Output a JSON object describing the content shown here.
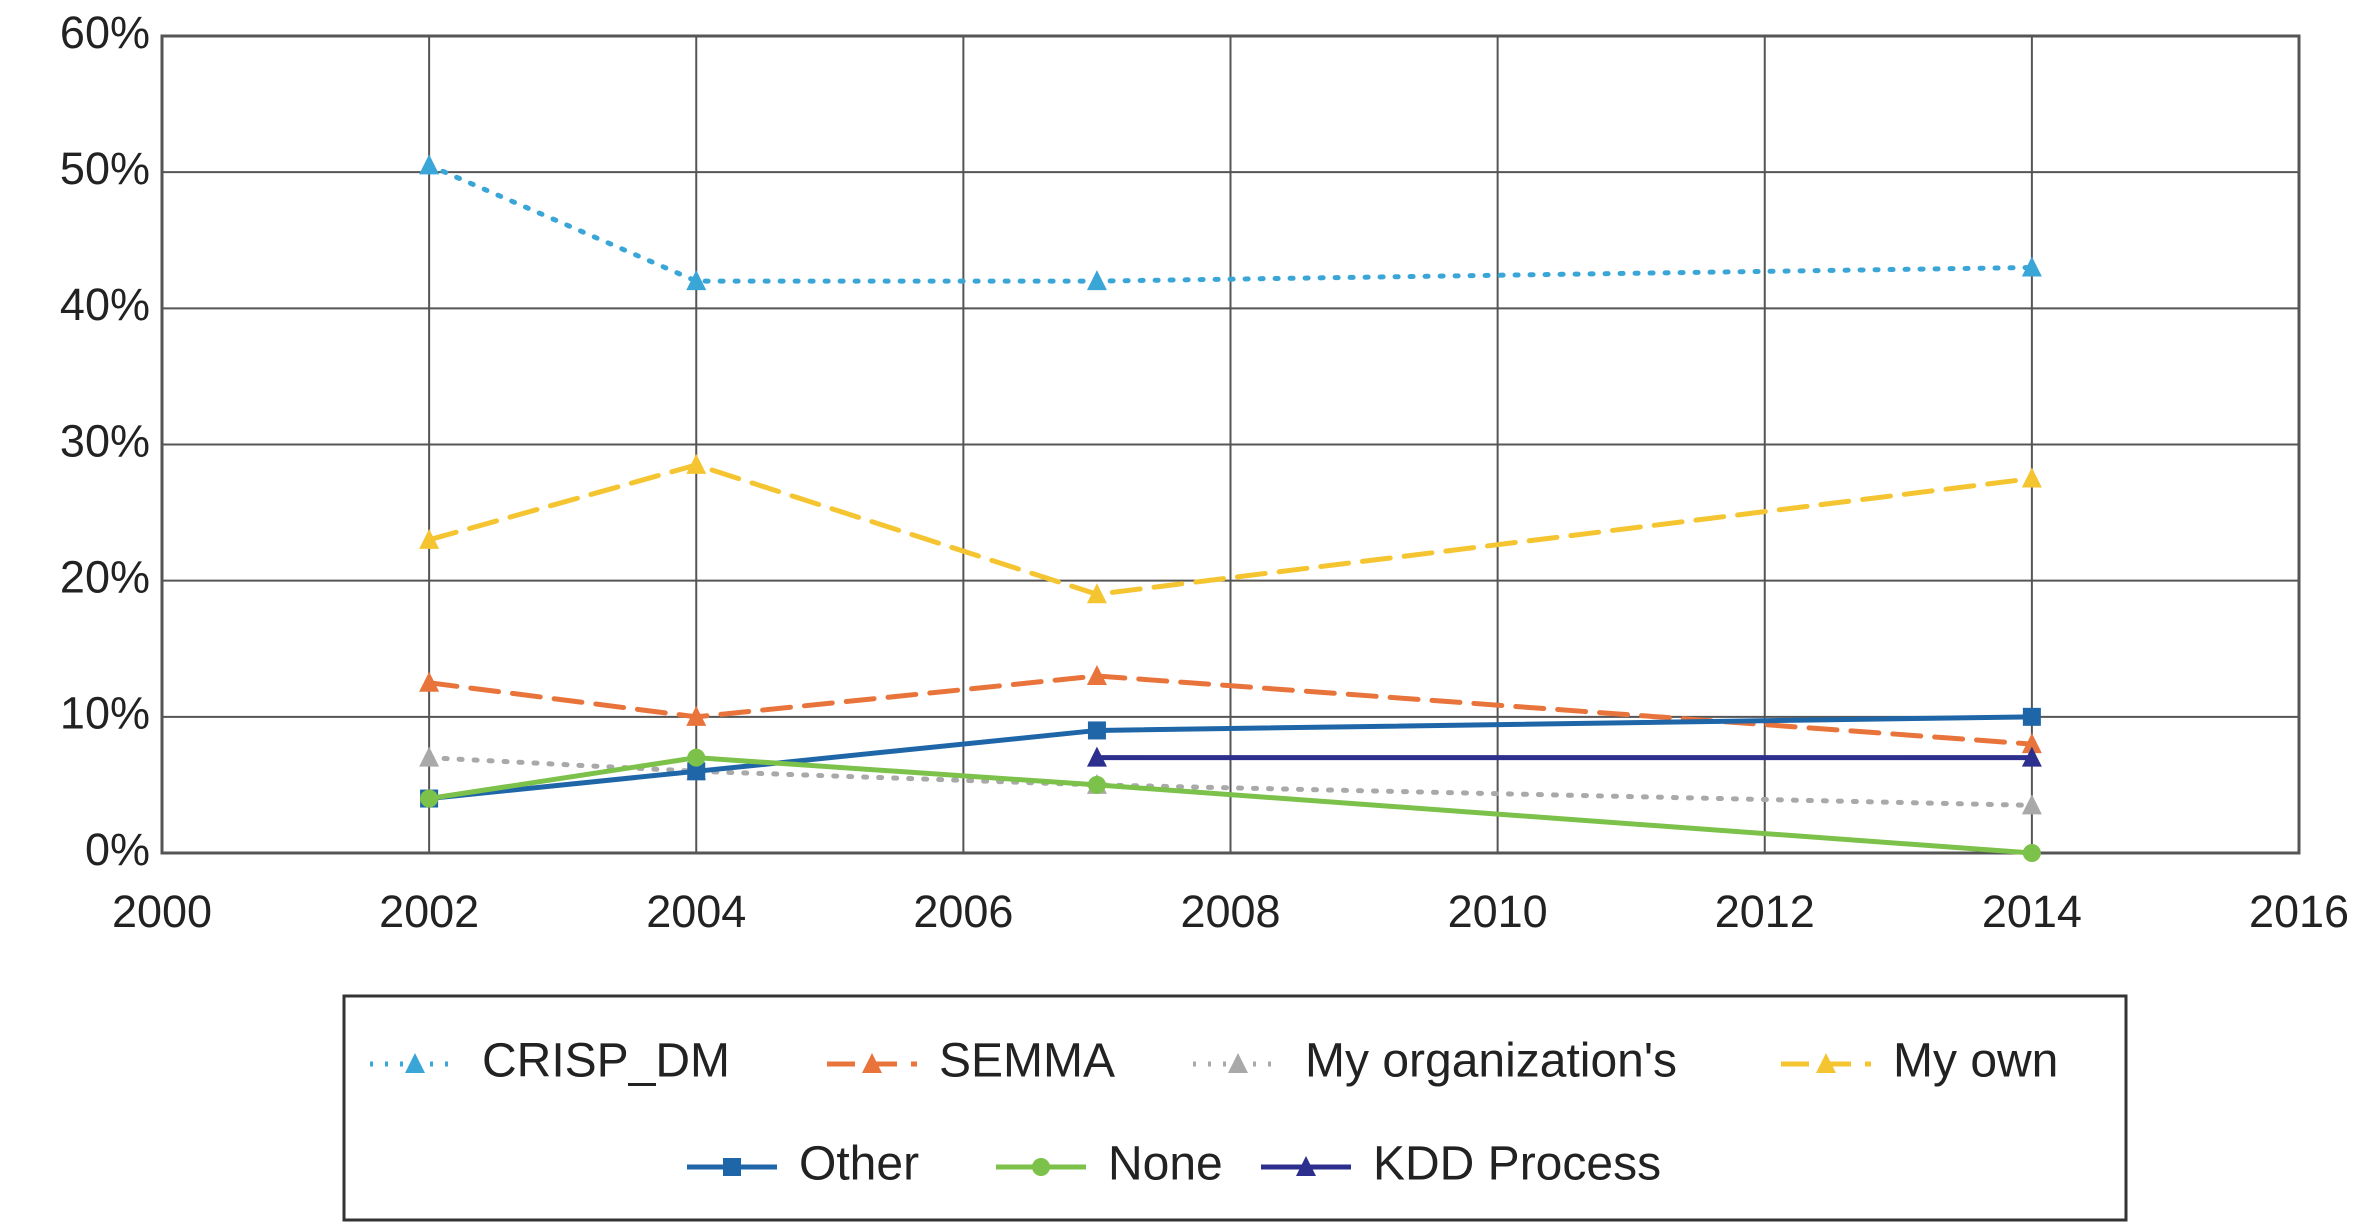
{
  "chart_data": {
    "type": "line",
    "x": [
      2002,
      2004,
      2007,
      2014
    ],
    "xlim": [
      2000,
      2016
    ],
    "xticks": [
      2000,
      2002,
      2004,
      2006,
      2008,
      2010,
      2012,
      2014,
      2016
    ],
    "ylim": [
      0,
      60
    ],
    "yticks": [
      {
        "value": 0,
        "label": "0%"
      },
      {
        "value": 10,
        "label": "10%"
      },
      {
        "value": 20,
        "label": "20%"
      },
      {
        "value": 30,
        "label": "30%"
      },
      {
        "value": 40,
        "label": "40%"
      },
      {
        "value": 50,
        "label": "50%"
      },
      {
        "value": 60,
        "label": "60%"
      }
    ],
    "grid": true,
    "legend": "bottom",
    "series": [
      {
        "name": "CRISP_DM",
        "color": "#3aa6d8",
        "dash": "dotted",
        "marker": "triangle",
        "values": [
          50.5,
          42,
          42,
          43
        ]
      },
      {
        "name": "SEMMA",
        "color": "#e8743b",
        "dash": "dashed",
        "marker": "triangle",
        "values": [
          12.5,
          10,
          13,
          8
        ]
      },
      {
        "name": "My organization's",
        "color": "#a9a9a9",
        "dash": "dotted",
        "marker": "triangle",
        "values": [
          7,
          6,
          5,
          3.5
        ]
      },
      {
        "name": "My own",
        "color": "#f5c531",
        "dash": "dashed",
        "marker": "triangle",
        "values": [
          23,
          28.5,
          19,
          27.5
        ]
      },
      {
        "name": "Other",
        "color": "#1f66a8",
        "dash": "solid",
        "marker": "square",
        "values": [
          4,
          6,
          9,
          10
        ]
      },
      {
        "name": "None",
        "color": "#7cc24a",
        "dash": "solid",
        "marker": "circle",
        "values": [
          4,
          7,
          5,
          0
        ]
      },
      {
        "name": "KDD Process",
        "color": "#2d2f8e",
        "dash": "solid",
        "marker": "triangle",
        "values": [
          null,
          null,
          7,
          7
        ]
      }
    ]
  }
}
